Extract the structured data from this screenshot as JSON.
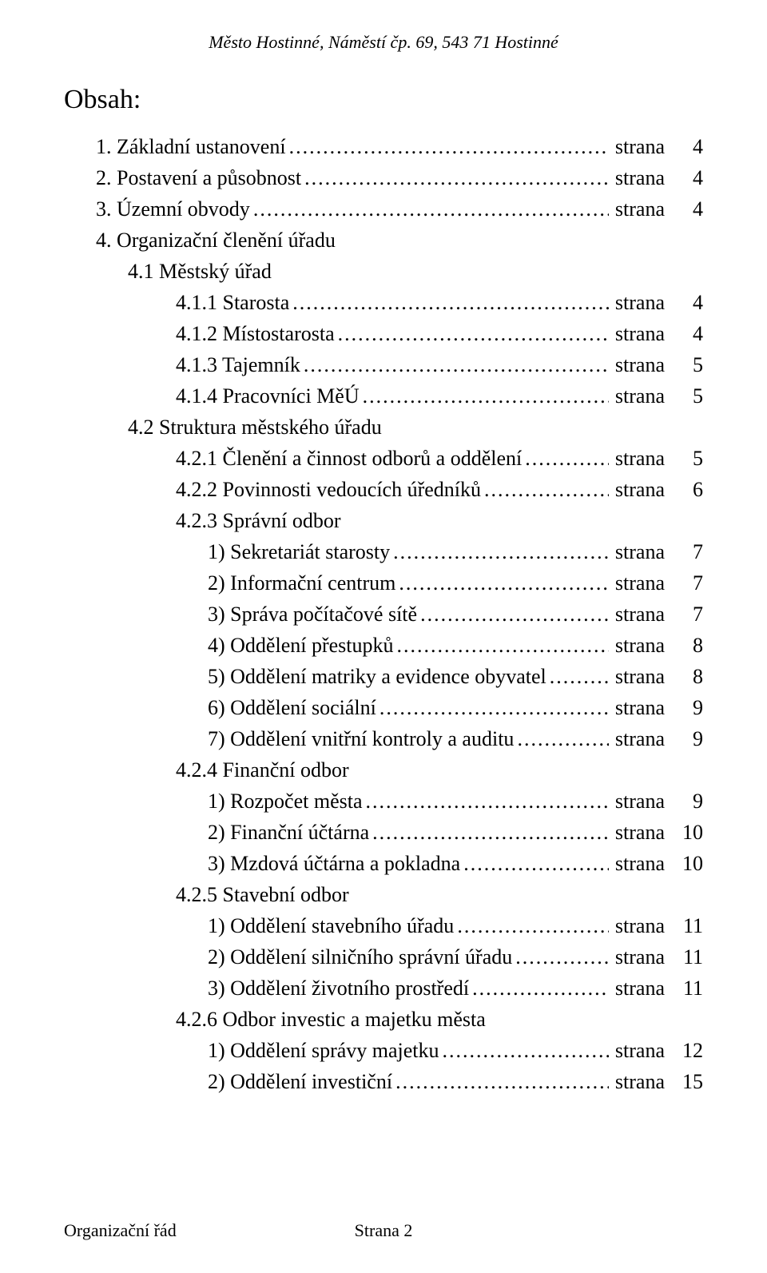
{
  "header_text": "Město Hostinné, Náměstí čp. 69, 543 71 Hostinné",
  "title": "Obsah:",
  "page_label_short": "strana",
  "footer": {
    "left": "Organizační řád",
    "center": "Strana 2"
  },
  "entries": [
    {
      "indent": 0,
      "label": "1.  Základní ustanovení",
      "page": "4",
      "show_page_label": true,
      "leader": true
    },
    {
      "indent": 0,
      "label": "2.  Postavení a působnost",
      "page": "4",
      "show_page_label": true,
      "leader": true
    },
    {
      "indent": 0,
      "label": "3.  Územní obvody",
      "page": "4",
      "show_page_label": true,
      "leader": true
    },
    {
      "indent": 0,
      "label": "4.  Organizační členění úřadu",
      "page": "",
      "show_page_label": false,
      "leader": false
    },
    {
      "indent": 1,
      "label": "4.1  Městský úřad",
      "page": "",
      "show_page_label": false,
      "leader": false
    },
    {
      "indent": 2,
      "label": "4.1.1  Starosta",
      "page": "4",
      "show_page_label": true,
      "leader": true
    },
    {
      "indent": 2,
      "label": "4.1.2  Místostarosta",
      "page": "4",
      "show_page_label": true,
      "leader": true
    },
    {
      "indent": 2,
      "label": "4.1.3  Tajemník",
      "page": "5",
      "show_page_label": true,
      "leader": true
    },
    {
      "indent": 2,
      "label": "4.1.4  Pracovníci MěÚ",
      "page": "5",
      "show_page_label": true,
      "leader": true
    },
    {
      "indent": 1,
      "label": "4.2  Struktura městského úřadu",
      "page": "",
      "show_page_label": false,
      "leader": false
    },
    {
      "indent": 2,
      "label": "4.2.1  Členění a činnost odborů a oddělení",
      "page": "5",
      "show_page_label": true,
      "leader": true
    },
    {
      "indent": 2,
      "label": "4.2.2  Povinnosti vedoucích úředníků",
      "page": "6",
      "show_page_label": true,
      "leader": true
    },
    {
      "indent": 2,
      "label": "4.2.3  Správní odbor",
      "page": "",
      "show_page_label": false,
      "leader": false
    },
    {
      "indent": 3,
      "label": "1)  Sekretariát starosty",
      "page": "7",
      "show_page_label": true,
      "leader": true
    },
    {
      "indent": 3,
      "label": "2)  Informační centrum",
      "page": "7",
      "show_page_label": true,
      "leader": true
    },
    {
      "indent": 3,
      "label": "3)  Správa počítačové sítě",
      "page": "7",
      "show_page_label": true,
      "leader": true
    },
    {
      "indent": 3,
      "label": "4)  Oddělení přestupků ",
      "page": "8",
      "show_page_label": true,
      "leader": true
    },
    {
      "indent": 3,
      "label": "5)  Oddělení matriky a evidence obyvatel",
      "page": "8",
      "show_page_label": true,
      "leader": true
    },
    {
      "indent": 3,
      "label": "6)  Oddělení sociální",
      "page": "9",
      "show_page_label": true,
      "leader": true
    },
    {
      "indent": 3,
      "label": "7)  Oddělení vnitřní kontroly a auditu",
      "page": "9",
      "show_page_label": true,
      "leader": true
    },
    {
      "indent": 2,
      "label": "4.2.4 Finanční odbor",
      "page": "",
      "show_page_label": false,
      "leader": false
    },
    {
      "indent": 3,
      "label": "1)  Rozpočet města",
      "page": "9",
      "show_page_label": true,
      "leader": true
    },
    {
      "indent": 3,
      "label": "2)  Finanční účtárna",
      "page": "10",
      "show_page_label": true,
      "leader": true
    },
    {
      "indent": 3,
      "label": "3)  Mzdová účtárna a pokladna",
      "page": "10",
      "show_page_label": true,
      "leader": true
    },
    {
      "indent": 2,
      "label": "4.2.5 Stavební odbor",
      "page": "",
      "show_page_label": false,
      "leader": false
    },
    {
      "indent": 3,
      "label": "1)  Oddělení stavebního úřadu",
      "page": "11",
      "show_page_label": true,
      "leader": true
    },
    {
      "indent": 3,
      "label": "2)  Oddělení silničního správní úřadu",
      "page": "11",
      "show_page_label": true,
      "leader": true
    },
    {
      "indent": 3,
      "label": "3)  Oddělení životního prostředí",
      "page": "11",
      "show_page_label": true,
      "leader": true
    },
    {
      "indent": 2,
      "label": "4.2.6 Odbor investic a majetku města",
      "page": "",
      "show_page_label": false,
      "leader": false
    },
    {
      "indent": 3,
      "label": "1) Oddělení správy majetku",
      "page": "12",
      "show_page_label": true,
      "leader": true
    },
    {
      "indent": 3,
      "label": "2) Oddělení investiční ",
      "page": "15",
      "show_page_label": true,
      "leader": true
    }
  ]
}
